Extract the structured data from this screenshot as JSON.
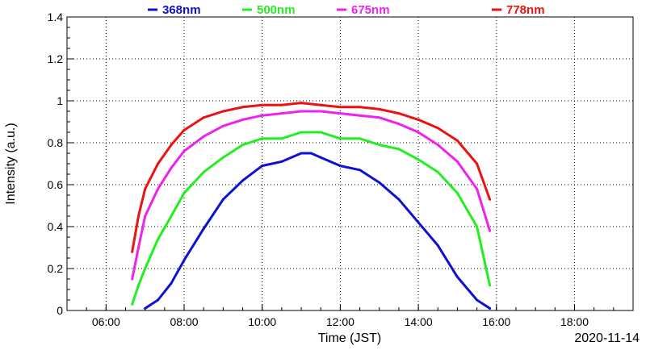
{
  "chart_data": {
    "type": "line",
    "xlabel": "Time (JST)",
    "ylabel": "Intensity (a.u.)",
    "date_label": "2020-11-14",
    "xlim": [
      5.0,
      19.5
    ],
    "ylim": [
      0,
      1.4
    ],
    "x_ticks": [
      6,
      8,
      10,
      12,
      14,
      16,
      18
    ],
    "x_tick_labels": [
      "06:00",
      "08:00",
      "10:00",
      "12:00",
      "14:00",
      "16:00",
      "18:00"
    ],
    "y_ticks": [
      0,
      0.2,
      0.4,
      0.6,
      0.8,
      1,
      1.2,
      1.4
    ],
    "y_tick_labels": [
      "0",
      "0.2",
      "0.4",
      "0.6",
      "0.8",
      "1",
      "1.2",
      "1.4"
    ],
    "grid": true,
    "legend_position": "top",
    "series": [
      {
        "name": "368nm",
        "color": "#1010d0",
        "x": [
          7.0,
          7.33,
          7.67,
          8.0,
          8.5,
          9.0,
          9.5,
          10.0,
          10.5,
          11.0,
          11.25,
          11.5,
          12.0,
          12.5,
          13.0,
          13.5,
          14.0,
          14.5,
          15.0,
          15.5,
          15.83
        ],
        "y": [
          0.01,
          0.05,
          0.13,
          0.24,
          0.39,
          0.53,
          0.62,
          0.69,
          0.71,
          0.75,
          0.75,
          0.73,
          0.69,
          0.67,
          0.61,
          0.53,
          0.42,
          0.31,
          0.16,
          0.05,
          0.01
        ]
      },
      {
        "name": "500nm",
        "color": "#22ee22",
        "x": [
          6.67,
          6.83,
          7.0,
          7.33,
          7.67,
          8.0,
          8.5,
          9.0,
          9.5,
          10.0,
          10.5,
          11.0,
          11.5,
          12.0,
          12.5,
          13.0,
          13.5,
          14.0,
          14.5,
          15.0,
          15.5,
          15.83
        ],
        "y": [
          0.03,
          0.12,
          0.2,
          0.34,
          0.45,
          0.56,
          0.66,
          0.73,
          0.79,
          0.82,
          0.82,
          0.85,
          0.85,
          0.82,
          0.82,
          0.79,
          0.77,
          0.72,
          0.66,
          0.56,
          0.4,
          0.12
        ]
      },
      {
        "name": "675nm",
        "color": "#ee22ee",
        "x": [
          6.67,
          6.83,
          7.0,
          7.33,
          7.67,
          8.0,
          8.5,
          9.0,
          9.5,
          10.0,
          10.5,
          11.0,
          11.5,
          12.0,
          12.5,
          13.0,
          13.5,
          14.0,
          14.5,
          15.0,
          15.5,
          15.83
        ],
        "y": [
          0.15,
          0.3,
          0.45,
          0.58,
          0.68,
          0.76,
          0.83,
          0.88,
          0.91,
          0.93,
          0.94,
          0.95,
          0.95,
          0.94,
          0.93,
          0.92,
          0.89,
          0.85,
          0.79,
          0.71,
          0.58,
          0.38
        ]
      },
      {
        "name": "778nm",
        "color": "#ee1111",
        "x": [
          6.67,
          6.83,
          7.0,
          7.33,
          7.67,
          8.0,
          8.5,
          9.0,
          9.5,
          10.0,
          10.5,
          11.0,
          11.5,
          12.0,
          12.5,
          13.0,
          13.5,
          14.0,
          14.5,
          15.0,
          15.5,
          15.83
        ],
        "y": [
          0.28,
          0.45,
          0.58,
          0.7,
          0.79,
          0.86,
          0.92,
          0.95,
          0.97,
          0.98,
          0.98,
          0.99,
          0.98,
          0.97,
          0.97,
          0.96,
          0.94,
          0.91,
          0.87,
          0.81,
          0.7,
          0.53
        ]
      }
    ]
  }
}
